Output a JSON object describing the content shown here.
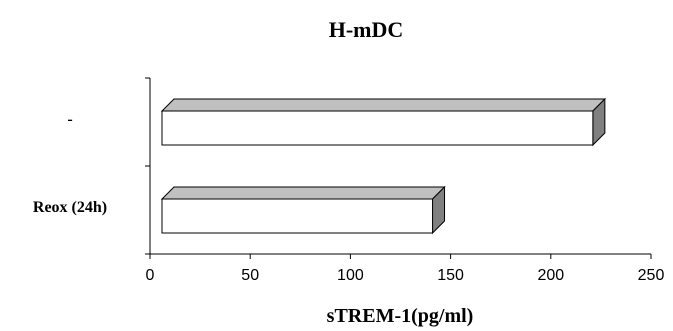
{
  "chart_data": {
    "type": "bar",
    "orientation": "horizontal",
    "style": "3d",
    "title": "H-mDC",
    "xlabel": "sTREM-1(pg/ml)",
    "ylabel": "",
    "categories": [
      "-",
      "Reox (24h)"
    ],
    "values": [
      215,
      135
    ],
    "xlim": [
      0,
      250
    ],
    "xticks": [
      0,
      50,
      100,
      150,
      200,
      250
    ],
    "grid": false,
    "legend": "none",
    "colors": {
      "bar_face": "#ffffff",
      "bar_top": "#c0c0c0",
      "bar_side": "#808080",
      "outline": "#000000"
    }
  }
}
